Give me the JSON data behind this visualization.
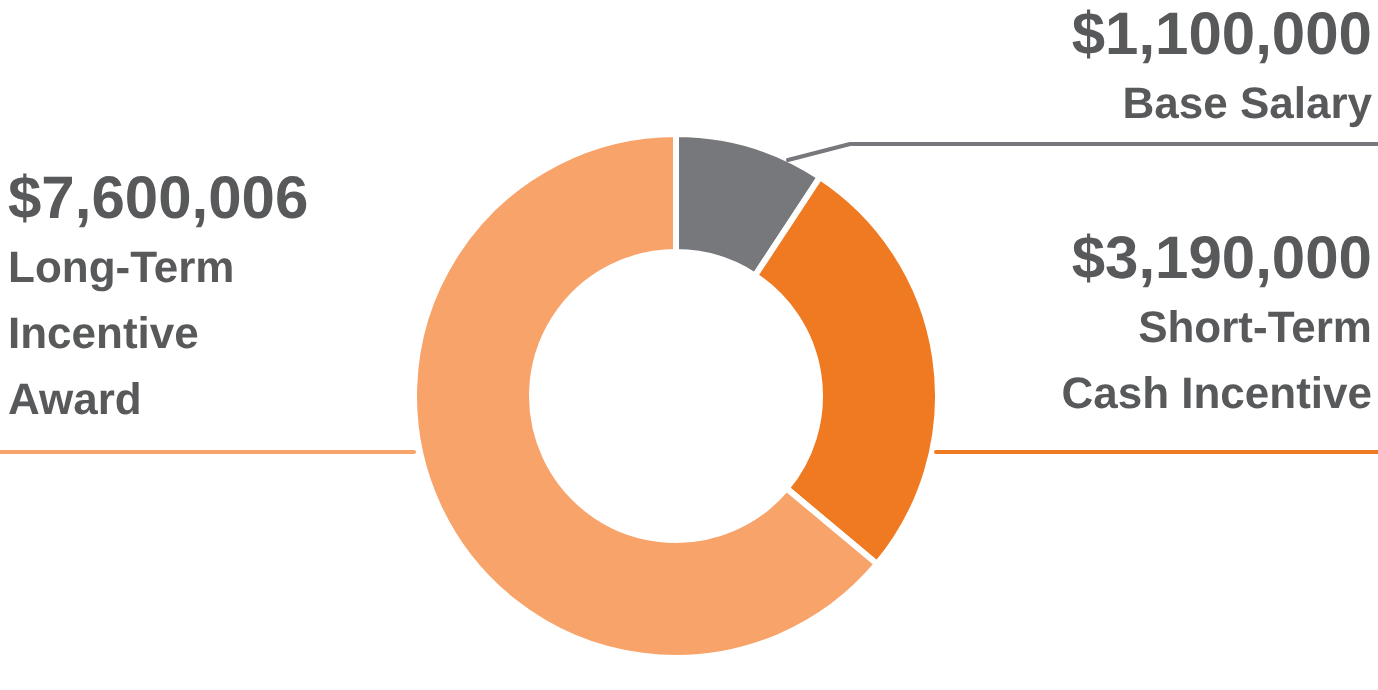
{
  "chart_data": {
    "type": "donut",
    "categories": [
      "Base Salary",
      "Short-Term Cash Incentive",
      "Long-Term Incentive Award"
    ],
    "values": [
      1100000,
      3190000,
      7600006
    ],
    "value_labels": [
      "$1,100,000",
      "$3,190,000",
      "$7,600,006"
    ],
    "colors": [
      "#77787b",
      "#f07a22",
      "#f8a36a"
    ]
  }
}
